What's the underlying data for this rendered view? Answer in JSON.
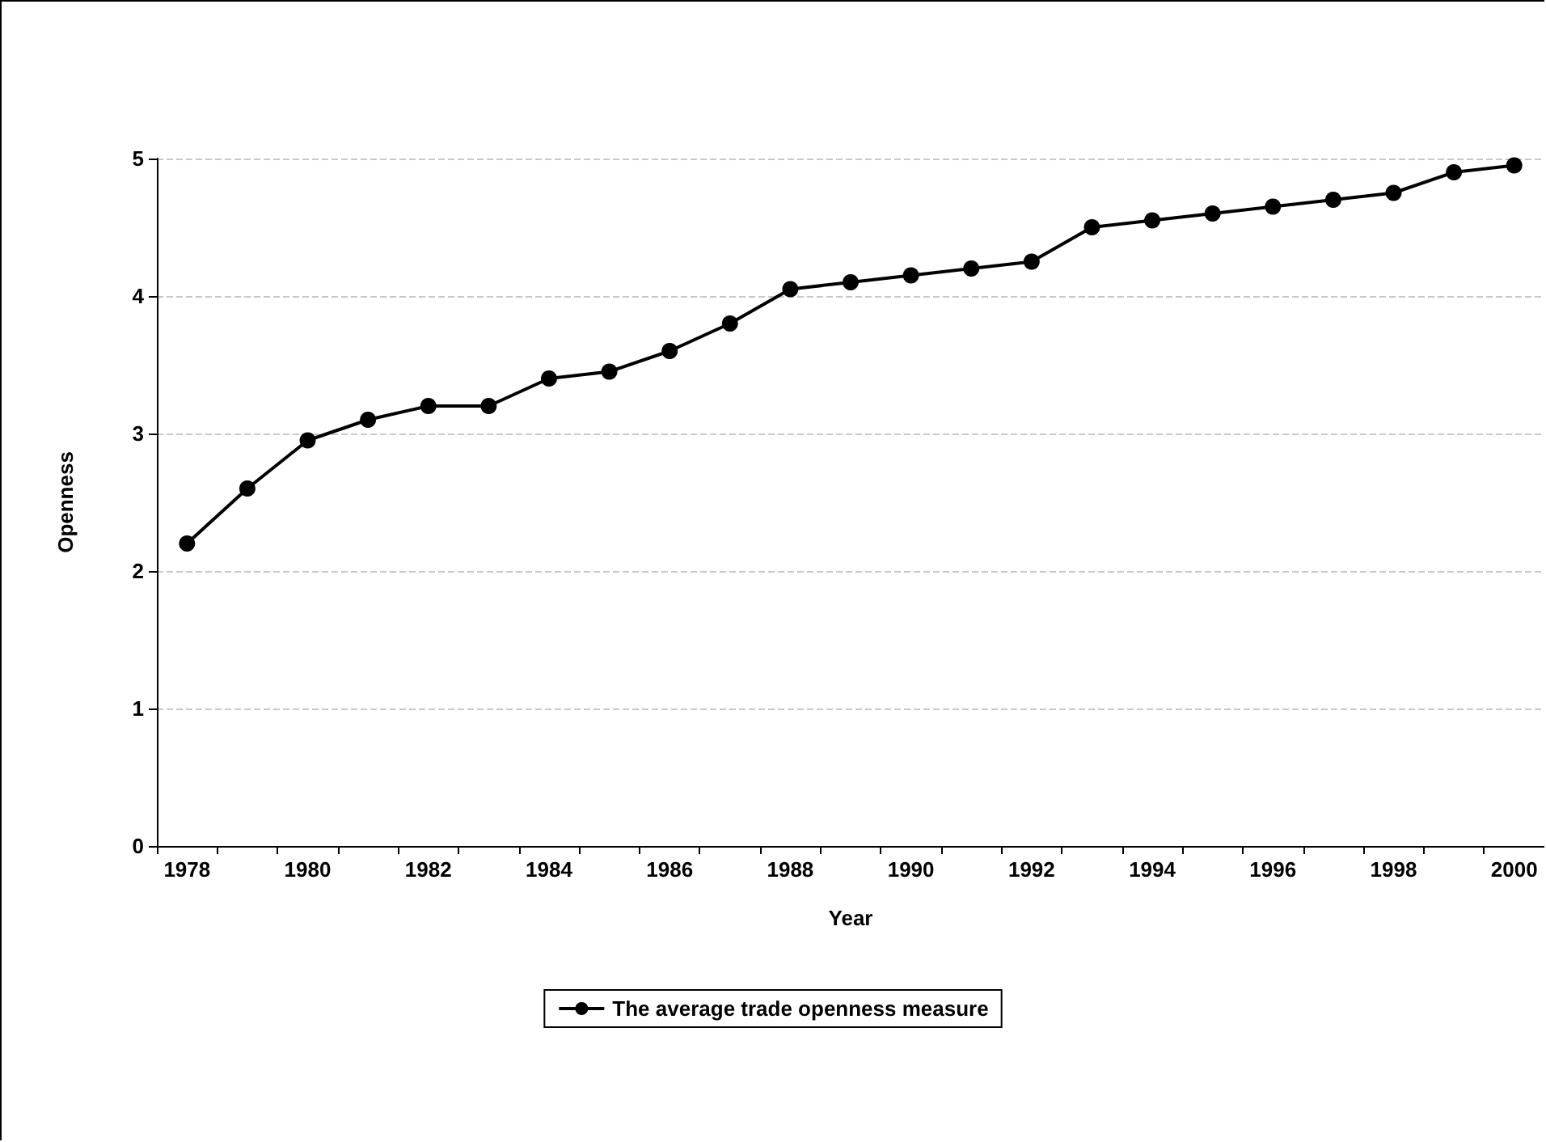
{
  "chart_data": {
    "type": "line",
    "xlabel": "Year",
    "ylabel": "Openness",
    "categories": [
      "1978",
      null,
      "1980",
      null,
      "1982",
      null,
      "1984",
      null,
      "1986",
      null,
      "1988",
      null,
      "1990",
      null,
      "1992",
      null,
      "1994",
      null,
      "1996",
      null,
      "1998",
      null,
      "2000"
    ],
    "series": [
      {
        "name": "The average trade openness measure",
        "color": "#000000",
        "values": [
          2.2,
          2.6,
          2.95,
          3.1,
          3.2,
          3.2,
          3.4,
          3.45,
          3.6,
          3.8,
          4.05,
          4.1,
          4.15,
          4.2,
          4.25,
          4.5,
          4.55,
          4.6,
          4.65,
          4.7,
          4.75,
          4.9,
          4.95
        ]
      }
    ],
    "ylim": [
      0,
      5
    ],
    "yticks": [
      0,
      1,
      2,
      3,
      4,
      5
    ],
    "grid": "y",
    "legend": "bottom",
    "marker": "circle",
    "line_style": "solid"
  }
}
